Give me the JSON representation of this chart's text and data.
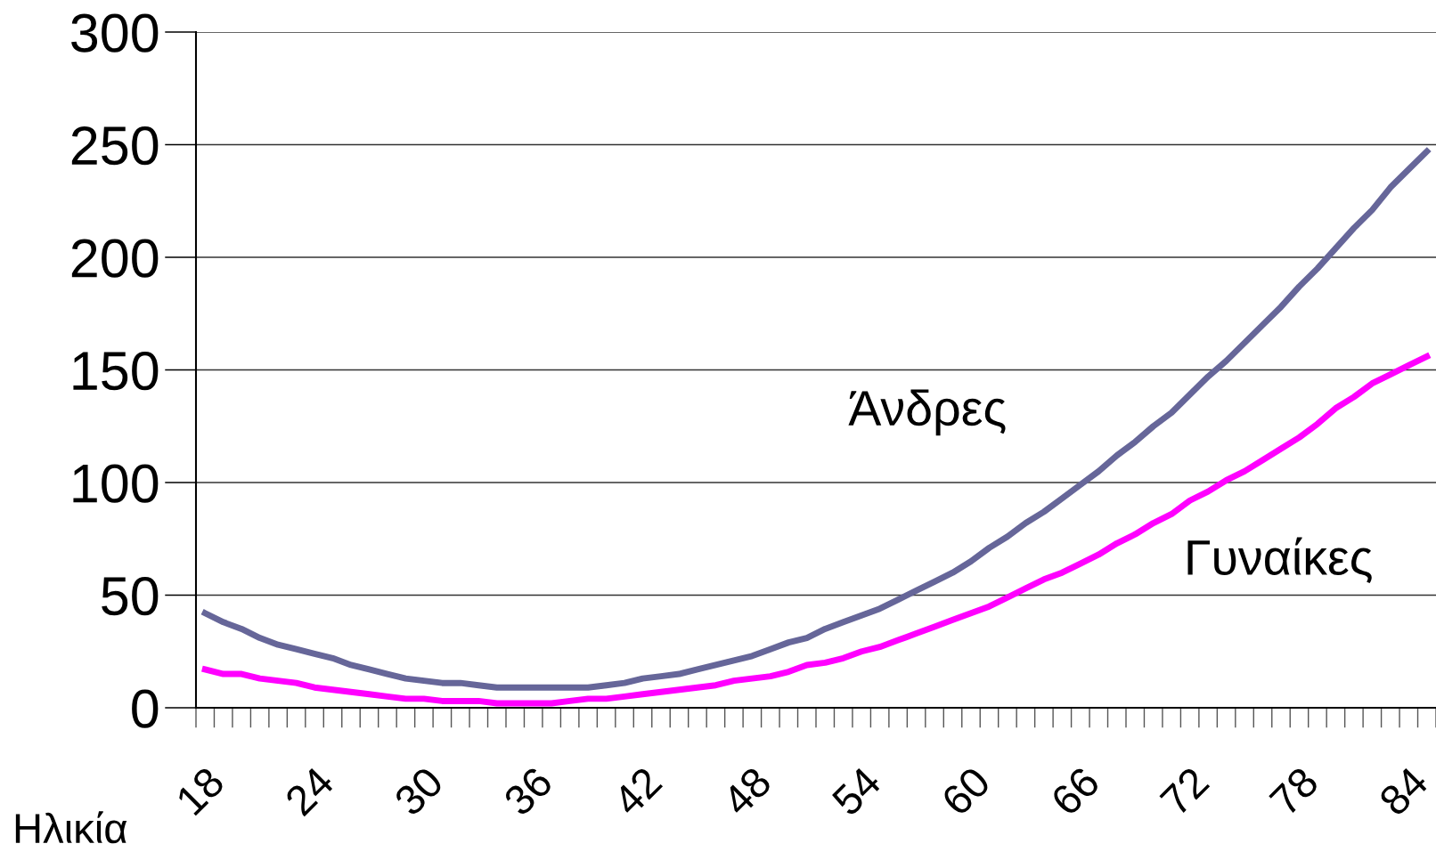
{
  "chart_data": {
    "type": "line",
    "xlabel": "Ηλικία",
    "categories": [
      "18",
      null,
      null,
      null,
      null,
      null,
      "24",
      null,
      null,
      null,
      null,
      null,
      "30",
      null,
      null,
      null,
      null,
      null,
      "36",
      null,
      null,
      null,
      null,
      null,
      "42",
      null,
      null,
      null,
      null,
      null,
      "48",
      null,
      null,
      null,
      null,
      null,
      "54",
      null,
      null,
      null,
      null,
      null,
      "60",
      null,
      null,
      null,
      null,
      null,
      "66",
      null,
      null,
      null,
      null,
      null,
      "72",
      null,
      null,
      null,
      null,
      null,
      "78",
      null,
      null,
      null,
      null,
      null,
      "84",
      null
    ],
    "series": [
      {
        "name": "Άνδρες",
        "color": "#666699",
        "values": [
          42,
          38,
          35,
          31,
          28,
          26,
          24,
          22,
          19,
          17,
          15,
          13,
          12,
          11,
          11,
          10,
          9,
          9,
          9,
          9,
          9,
          9,
          10,
          11,
          13,
          14,
          15,
          17,
          19,
          21,
          23,
          26,
          29,
          31,
          35,
          38,
          41,
          44,
          48,
          52,
          56,
          60,
          65,
          71,
          76,
          82,
          87,
          93,
          99,
          105,
          112,
          118,
          125,
          131,
          139,
          147,
          154,
          162,
          170,
          178,
          187,
          195,
          204,
          213,
          221,
          231,
          239,
          247
        ]
      },
      {
        "name": "Γυναίκες",
        "color": "#ff00ff",
        "values": [
          17,
          15,
          15,
          13,
          12,
          11,
          9,
          8,
          7,
          6,
          5,
          4,
          4,
          3,
          3,
          3,
          2,
          2,
          2,
          2,
          3,
          4,
          4,
          5,
          6,
          7,
          8,
          9,
          10,
          12,
          13,
          14,
          16,
          19,
          20,
          22,
          25,
          27,
          30,
          33,
          36,
          39,
          42,
          45,
          49,
          53,
          57,
          60,
          64,
          68,
          73,
          77,
          82,
          86,
          92,
          96,
          101,
          105,
          110,
          115,
          120,
          126,
          133,
          138,
          144,
          148,
          152,
          156
        ]
      }
    ],
    "ylim": [
      0,
      300
    ],
    "yticks": [
      0,
      50,
      100,
      150,
      200,
      250,
      300
    ],
    "grid": "y",
    "legend": false,
    "marker": "none",
    "line_style": "solid"
  }
}
